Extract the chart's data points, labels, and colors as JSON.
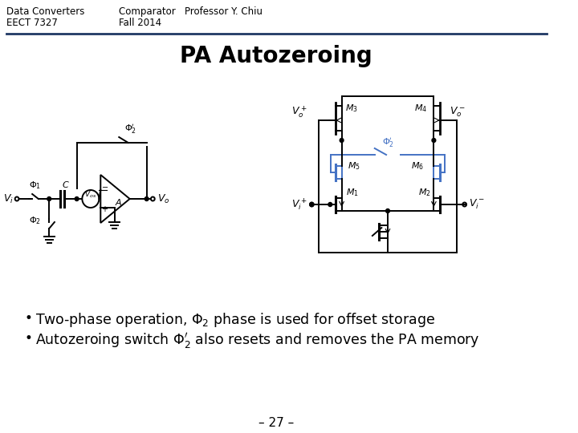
{
  "header_left_line1": "Data Converters",
  "header_left_line2": "EECT 7327",
  "header_center_line1": "Comparator   Professor Y. Chiu",
  "header_center_line2": "Fall 2014",
  "title": "PA Autozeroing",
  "footer": "– 27 –",
  "bg_color": "#ffffff",
  "text_color": "#000000",
  "line_color": "#1f3864",
  "blue_color": "#4472c4",
  "header_fontsize": 8.5,
  "title_fontsize": 20,
  "bullet_fontsize": 12.5,
  "footer_fontsize": 11,
  "lw": 1.4
}
